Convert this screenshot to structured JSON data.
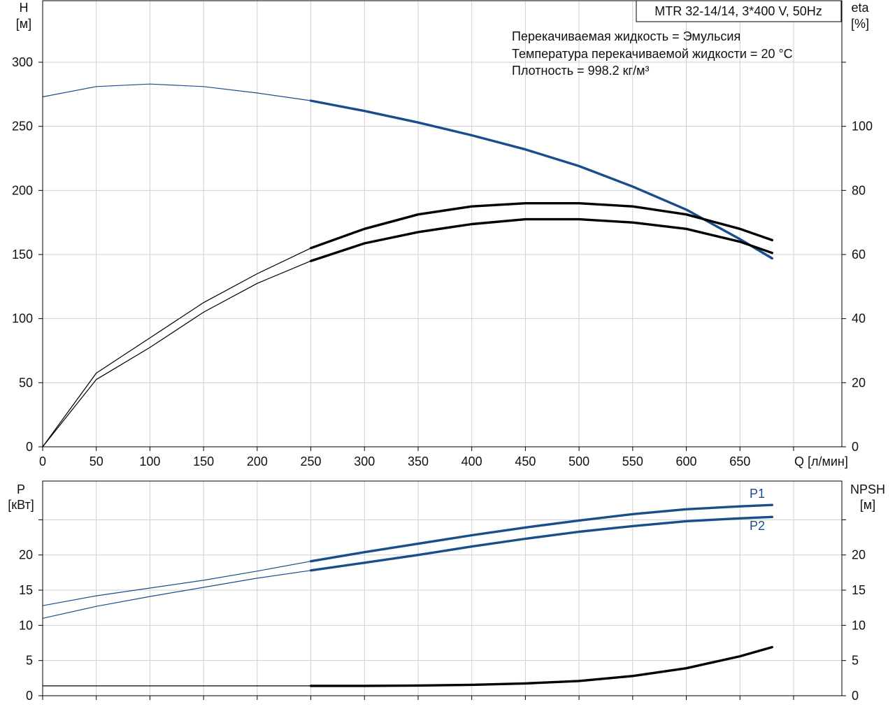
{
  "chart_data": [
    {
      "type": "line",
      "name": "head-efficiency",
      "title_box": "MTR 32-14/14, 3*400 V, 50Hz",
      "annotations": [
        "Перекачиваемая жидкость = Эмульсия",
        "Температура перекачиваемой жидкости = 20 °C",
        "Плотность = 998.2 кг/м³"
      ],
      "xlabel": "Q [л/мин]",
      "xlim": [
        0,
        745
      ],
      "xticks": [
        0,
        50,
        100,
        150,
        200,
        250,
        300,
        350,
        400,
        450,
        500,
        550,
        600,
        650
      ],
      "y_left": {
        "label_line1": "H",
        "label_line2": "[м]",
        "lim": [
          0,
          348
        ],
        "ticks": [
          0,
          50,
          100,
          150,
          200,
          250,
          300
        ]
      },
      "y_right": {
        "label_line1": "eta",
        "label_line2": "[%]",
        "lim": [
          0,
          139.2
        ],
        "ticks": [
          0,
          20,
          40,
          60,
          80,
          100
        ]
      },
      "grid": true,
      "series": [
        {
          "axis": "left",
          "color": "#1a4e8a",
          "role": "head",
          "x": [
            0,
            50,
            100,
            150,
            200,
            250,
            300,
            350,
            400,
            450,
            500,
            550,
            600,
            650,
            680
          ],
          "y": [
            273,
            281,
            283,
            281,
            276,
            270,
            262,
            253,
            243,
            232,
            219,
            203,
            185,
            162,
            147
          ]
        },
        {
          "axis": "right",
          "color": "#000000",
          "role": "efficiency-upper",
          "x": [
            0,
            50,
            100,
            150,
            200,
            250,
            300,
            350,
            400,
            450,
            500,
            550,
            600,
            650,
            680
          ],
          "y": [
            0,
            23,
            34,
            45,
            54,
            62,
            68,
            72.5,
            75,
            76,
            76,
            75,
            72.5,
            68,
            64.5
          ]
        },
        {
          "axis": "right",
          "color": "#000000",
          "role": "efficiency-lower",
          "x": [
            0,
            50,
            100,
            150,
            200,
            250,
            300,
            350,
            400,
            450,
            500,
            550,
            600,
            650,
            680
          ],
          "y": [
            0,
            21,
            31,
            42,
            51,
            58,
            63.5,
            67,
            69.5,
            71,
            71,
            70,
            68,
            64,
            60.5
          ]
        }
      ]
    },
    {
      "type": "line",
      "name": "power-npsh",
      "xlim": [
        0,
        745
      ],
      "y_left": {
        "label_line1": "P",
        "label_line2": "[кВт]",
        "lim": [
          0,
          30.5
        ],
        "ticks": [
          0,
          5,
          10,
          15,
          20
        ]
      },
      "y_right": {
        "label_line1": "NPSH",
        "label_line2": "[м]",
        "lim": [
          0,
          30.5
        ],
        "ticks": [
          0,
          5,
          10,
          15,
          20
        ]
      },
      "grid": true,
      "series": [
        {
          "name": "P1",
          "axis": "left",
          "color": "#1a4e8a",
          "x": [
            0,
            50,
            100,
            150,
            200,
            250,
            300,
            350,
            400,
            450,
            500,
            550,
            600,
            650,
            680
          ],
          "y": [
            12.8,
            14.2,
            15.3,
            16.4,
            17.7,
            19.1,
            20.4,
            21.6,
            22.8,
            23.9,
            24.9,
            25.8,
            26.5,
            26.9,
            27.1
          ]
        },
        {
          "name": "P2",
          "axis": "left",
          "color": "#1a4e8a",
          "x": [
            0,
            50,
            100,
            150,
            200,
            250,
            300,
            350,
            400,
            450,
            500,
            550,
            600,
            650,
            680
          ],
          "y": [
            11.0,
            12.7,
            14.1,
            15.4,
            16.7,
            17.8,
            18.9,
            20.0,
            21.2,
            22.3,
            23.3,
            24.1,
            24.8,
            25.2,
            25.4
          ]
        },
        {
          "axis": "right",
          "color": "#000000",
          "role": "npsh",
          "x": [
            0,
            250,
            300,
            350,
            400,
            450,
            500,
            550,
            600,
            650,
            680
          ],
          "y": [
            1.4,
            1.4,
            1.4,
            1.45,
            1.55,
            1.75,
            2.1,
            2.8,
            3.9,
            5.6,
            6.9
          ]
        }
      ]
    }
  ]
}
